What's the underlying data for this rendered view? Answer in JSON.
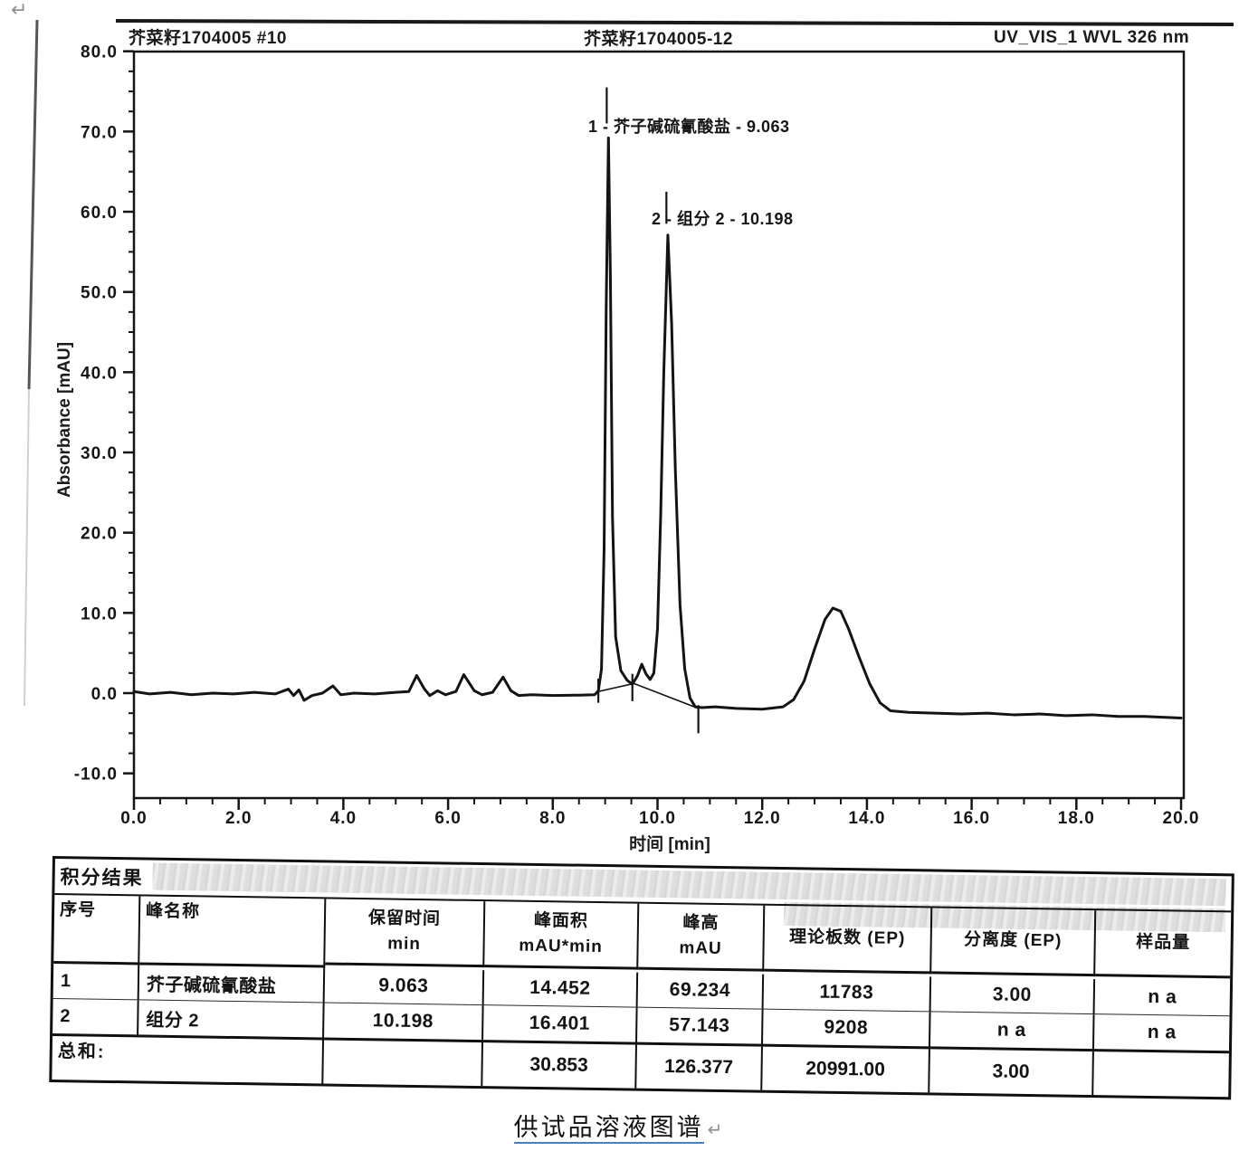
{
  "page": {
    "return_mark": "↵",
    "caption": "供试品溶液图谱"
  },
  "chrom_header": {
    "left": "芥菜籽1704005 #10",
    "center": "芥菜籽1704005-12",
    "right": "UV_VIS_1 WVL 326 nm"
  },
  "chart_data": {
    "type": "line",
    "title": "",
    "xlabel": "时间 [min]",
    "ylabel": "Absorbance [mAU]",
    "xlim": [
      0,
      20
    ],
    "ylim": [
      -10,
      80
    ],
    "grid": false,
    "line_color": "#141414",
    "x_tick_values": [
      0,
      2,
      4,
      6,
      8,
      10,
      12,
      14,
      16,
      18,
      20
    ],
    "x_tick_labels": [
      "0.0",
      "2.0",
      "4.0",
      "6.0",
      "8.0",
      "10.0",
      "12.0",
      "14.0",
      "16.0",
      "18.0",
      "20.0"
    ],
    "y_tick_values": [
      80,
      70,
      60,
      50,
      40,
      30,
      20,
      10,
      0,
      -10
    ],
    "y_tick_labels": [
      "80.0",
      "70.0",
      "60.0",
      "50.0",
      "40.0",
      "30.0",
      "20.0",
      "10.0",
      "0.0",
      "-10.0"
    ],
    "x_minor_step": 0.5,
    "y_minor_step": 2.5,
    "peaks": [
      {
        "label": "1 - 芥子碱硫氰酸盐 - 9.063",
        "name": "芥子碱硫氰酸盐",
        "retention_min": 9.063,
        "height_mAU": 69.234,
        "area_mAU_min": 14.452,
        "plates_EP": 11783,
        "resolution_EP": "3.00"
      },
      {
        "label": "2 - 组分 2 - 10.198",
        "name": "组分 2",
        "retention_min": 10.198,
        "height_mAU": 57.143,
        "area_mAU_min": 16.401,
        "plates_EP": 9208,
        "resolution_EP": "n a"
      }
    ],
    "trace": [
      [
        0,
        0.2
      ],
      [
        0.3,
        -0.1
      ],
      [
        0.7,
        0.1
      ],
      [
        1.1,
        -0.2
      ],
      [
        1.5,
        0
      ],
      [
        1.9,
        -0.1
      ],
      [
        2.3,
        0.1
      ],
      [
        2.7,
        -0.1
      ],
      [
        2.95,
        0.5
      ],
      [
        3.05,
        -0.3
      ],
      [
        3.15,
        0.4
      ],
      [
        3.25,
        -0.9
      ],
      [
        3.4,
        -0.3
      ],
      [
        3.6,
        0
      ],
      [
        3.8,
        0.9
      ],
      [
        3.95,
        -0.2
      ],
      [
        4.2,
        0
      ],
      [
        4.6,
        -0.1
      ],
      [
        5.0,
        0.1
      ],
      [
        5.25,
        0.2
      ],
      [
        5.4,
        2.2
      ],
      [
        5.55,
        0.5
      ],
      [
        5.65,
        -0.3
      ],
      [
        5.8,
        0.3
      ],
      [
        5.95,
        -0.2
      ],
      [
        6.15,
        0.2
      ],
      [
        6.3,
        2.3
      ],
      [
        6.5,
        0.3
      ],
      [
        6.65,
        -0.2
      ],
      [
        6.85,
        0.1
      ],
      [
        7.05,
        2.0
      ],
      [
        7.2,
        0.3
      ],
      [
        7.35,
        -0.3
      ],
      [
        7.6,
        -0.2
      ],
      [
        8.0,
        -0.3
      ],
      [
        8.5,
        -0.25
      ],
      [
        8.8,
        -0.2
      ],
      [
        8.87,
        0.3
      ],
      [
        8.93,
        3
      ],
      [
        8.98,
        18
      ],
      [
        9.02,
        48
      ],
      [
        9.063,
        69.2
      ],
      [
        9.1,
        52
      ],
      [
        9.14,
        22
      ],
      [
        9.2,
        7
      ],
      [
        9.3,
        2.8
      ],
      [
        9.42,
        1.6
      ],
      [
        9.52,
        1.1
      ],
      [
        9.62,
        2.2
      ],
      [
        9.7,
        3.6
      ],
      [
        9.78,
        2.4
      ],
      [
        9.86,
        1.7
      ],
      [
        9.93,
        2.5
      ],
      [
        10.0,
        8
      ],
      [
        10.06,
        22
      ],
      [
        10.12,
        40
      ],
      [
        10.198,
        57.1
      ],
      [
        10.27,
        46
      ],
      [
        10.34,
        28
      ],
      [
        10.43,
        11
      ],
      [
        10.52,
        3
      ],
      [
        10.62,
        -0.6
      ],
      [
        10.72,
        -1.7
      ],
      [
        10.85,
        -1.8
      ],
      [
        11.1,
        -1.7
      ],
      [
        11.5,
        -1.9
      ],
      [
        12.0,
        -2.0
      ],
      [
        12.4,
        -1.7
      ],
      [
        12.6,
        -0.8
      ],
      [
        12.8,
        1.5
      ],
      [
        13.0,
        5.5
      ],
      [
        13.2,
        9.2
      ],
      [
        13.35,
        10.6
      ],
      [
        13.5,
        10.2
      ],
      [
        13.65,
        8
      ],
      [
        13.85,
        4.5
      ],
      [
        14.05,
        1.2
      ],
      [
        14.25,
        -1.2
      ],
      [
        14.45,
        -2.2
      ],
      [
        14.8,
        -2.4
      ],
      [
        15.3,
        -2.5
      ],
      [
        15.8,
        -2.6
      ],
      [
        16.3,
        -2.5
      ],
      [
        16.8,
        -2.7
      ],
      [
        17.3,
        -2.6
      ],
      [
        17.8,
        -2.8
      ],
      [
        18.3,
        -2.7
      ],
      [
        18.8,
        -2.9
      ],
      [
        19.3,
        -2.9
      ],
      [
        20,
        -3.1
      ]
    ],
    "integration_baseline": [
      [
        8.87,
        0.2
      ],
      [
        9.55,
        1.2
      ],
      [
        10.78,
        -1.9
      ]
    ],
    "markers": [
      [
        8.87,
        -1.2,
        8.87,
        1.8
      ],
      [
        9.52,
        -1.0,
        9.52,
        2.4
      ],
      [
        10.78,
        -5.0,
        10.78,
        -1.5
      ],
      [
        9.03,
        71,
        9.03,
        75.5
      ],
      [
        10.17,
        58.5,
        10.17,
        62.5
      ]
    ]
  },
  "table": {
    "title": "积分结果",
    "columns": [
      {
        "label": "序号",
        "unit": ""
      },
      {
        "label": "峰名称",
        "unit": ""
      },
      {
        "label": "保留时间",
        "unit": "min"
      },
      {
        "label": "峰面积",
        "unit": "mAU*min"
      },
      {
        "label": "峰高",
        "unit": "mAU"
      },
      {
        "label": "理论板数 (EP)",
        "unit": ""
      },
      {
        "label": "分离度 (EP)",
        "unit": ""
      },
      {
        "label": "样品量",
        "unit": ""
      }
    ],
    "rows": [
      [
        "1",
        "芥子碱硫氰酸盐",
        "9.063",
        "14.452",
        "69.234",
        "11783",
        "3.00",
        "n a"
      ],
      [
        "2",
        "组分 2",
        "10.198",
        "16.401",
        "57.143",
        "9208",
        "n a",
        "n a"
      ]
    ],
    "sum": {
      "label": "总和:",
      "retention": "",
      "area": "30.853",
      "height": "126.377",
      "plates": "20991.00",
      "resolution": "3.00",
      "amount": ""
    }
  }
}
